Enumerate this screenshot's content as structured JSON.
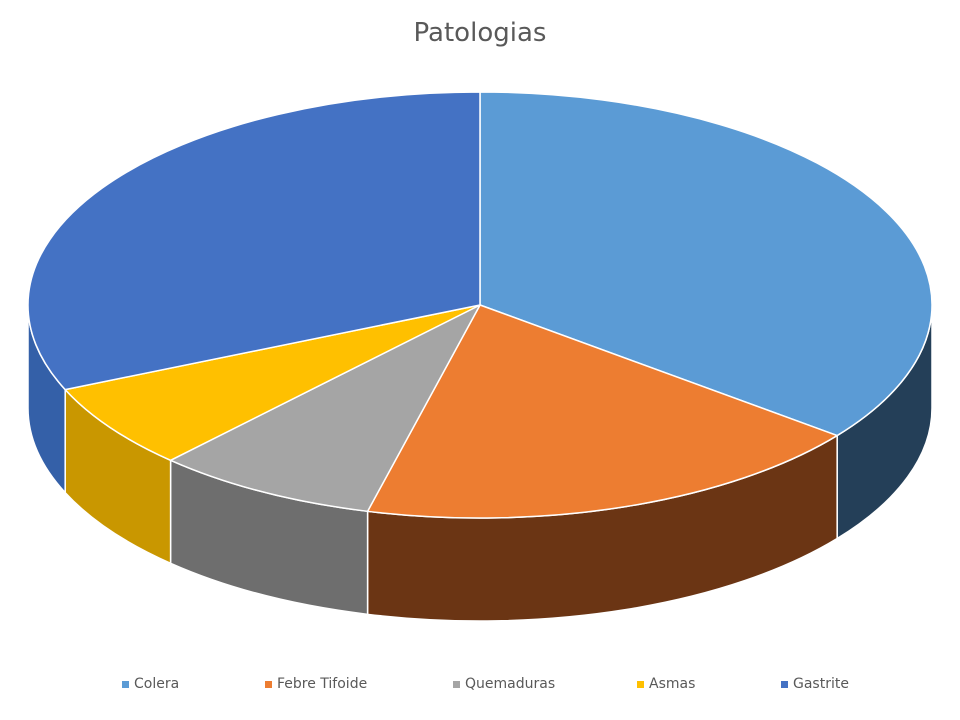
{
  "chart_data": {
    "type": "pie",
    "title": "Patologias",
    "categories": [
      "Colera",
      "Febre Tifoide",
      "Quemaduras",
      "Asmas",
      "Gastrite"
    ],
    "values": [
      35.5,
      18.5,
      8,
      6.5,
      31.5
    ],
    "colors": [
      "#5B9BD5",
      "#ED7D31",
      "#A5A5A5",
      "#FFC000",
      "#4472C4"
    ],
    "side_colors": [
      "#243F58",
      "#6B3514",
      "#6E6E6E",
      "#C99700",
      "#3460A8"
    ],
    "three_d": true,
    "legend_position": "bottom"
  }
}
